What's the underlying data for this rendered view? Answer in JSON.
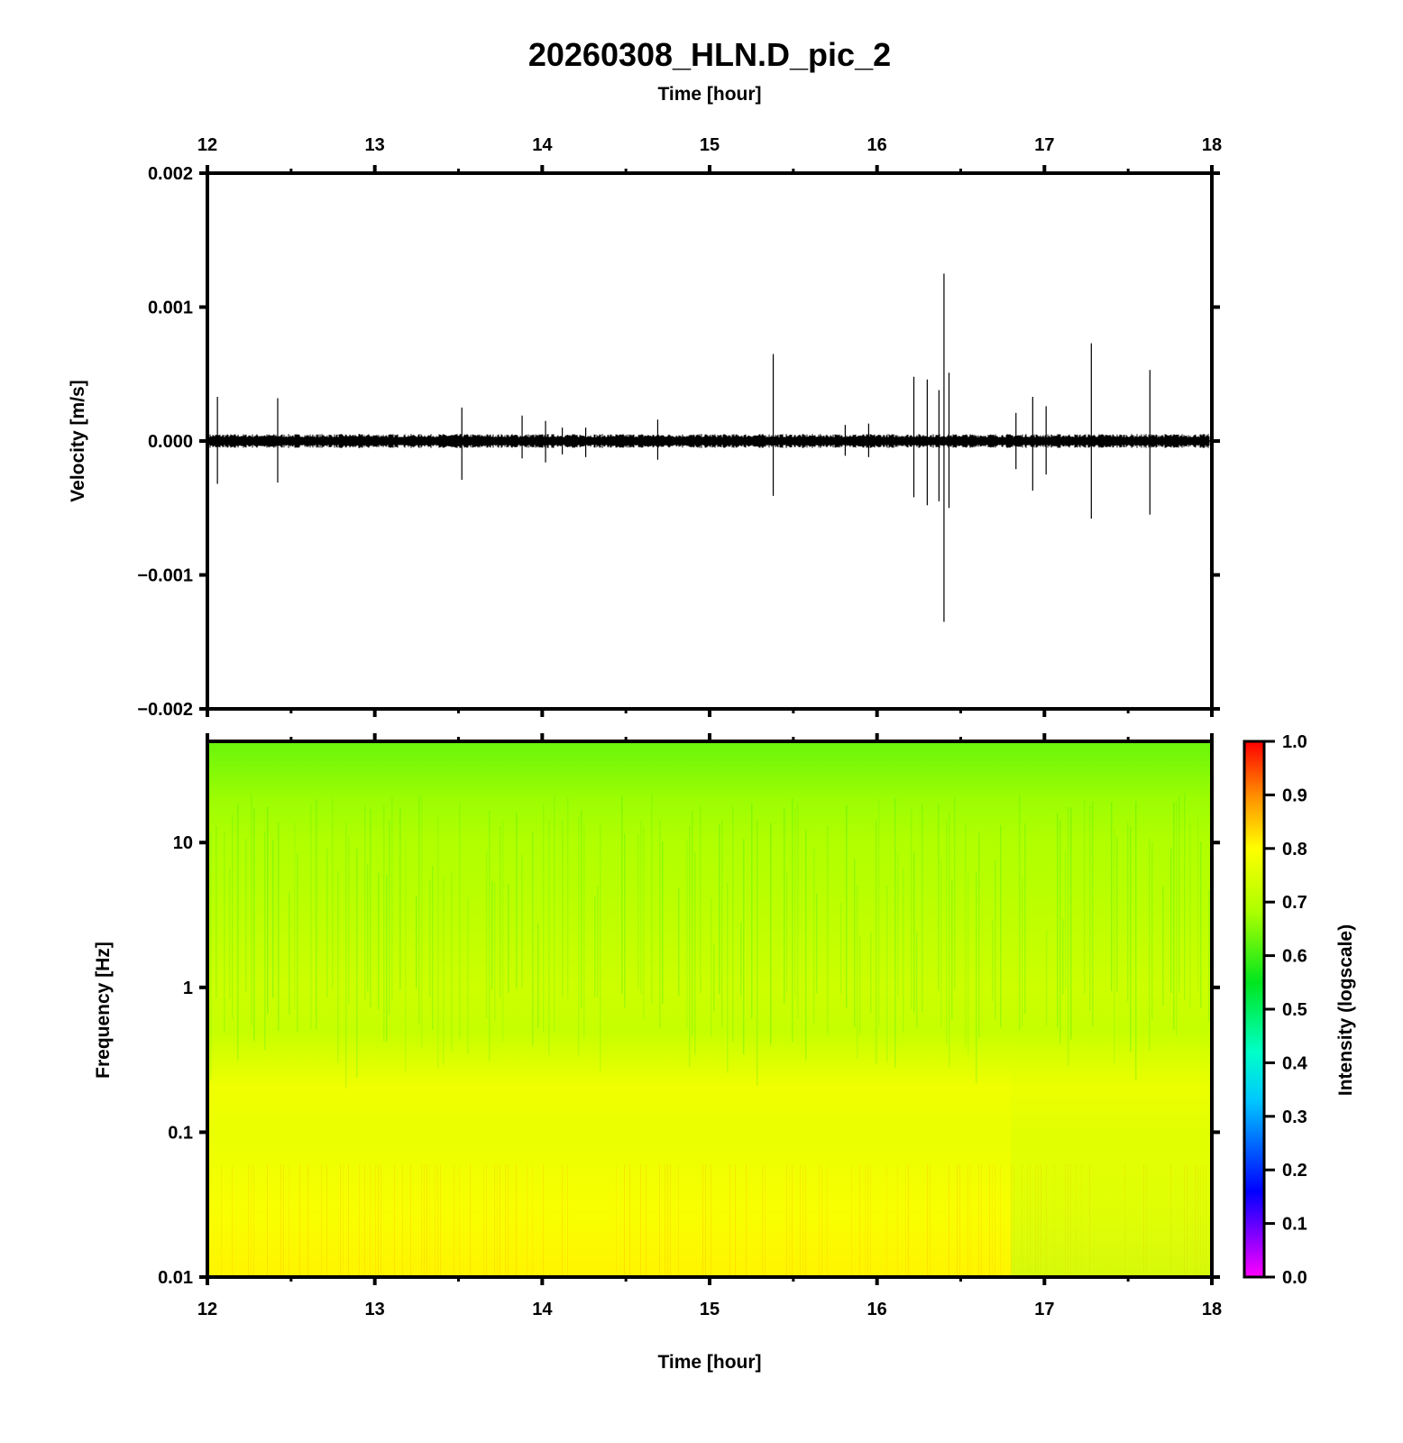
{
  "title": "20260308_HLN.D_pic_2",
  "chart_data": [
    {
      "type": "line",
      "name": "waveform",
      "xlabel": "Time [hour]",
      "ylabel": "Velocity [m/s]",
      "xlim": [
        12,
        18
      ],
      "ylim": [
        -0.002,
        0.002
      ],
      "x_ticks": [
        "12",
        "13",
        "14",
        "15",
        "16",
        "17",
        "18"
      ],
      "y_ticks": [
        {
          "value": 0.002,
          "label": "0.002"
        },
        {
          "value": 0.001,
          "label": "0.001"
        },
        {
          "value": 0.0,
          "label": "0.000"
        },
        {
          "value": -0.001,
          "label": "−0.001"
        },
        {
          "value": -0.002,
          "label": "−0.002"
        }
      ],
      "noise_amplitude": 4e-05,
      "spikes": [
        {
          "t": 12.06,
          "max": 0.00033,
          "min": -0.00032
        },
        {
          "t": 12.42,
          "max": 0.00032,
          "min": -0.00031
        },
        {
          "t": 13.52,
          "max": 0.00025,
          "min": -0.00029
        },
        {
          "t": 13.88,
          "max": 0.00019,
          "min": -0.00013
        },
        {
          "t": 14.02,
          "max": 0.00015,
          "min": -0.00016
        },
        {
          "t": 14.12,
          "max": 0.0001,
          "min": -0.0001
        },
        {
          "t": 14.26,
          "max": 0.0001,
          "min": -0.00012
        },
        {
          "t": 14.69,
          "max": 0.00016,
          "min": -0.00014
        },
        {
          "t": 15.38,
          "max": 0.00065,
          "min": -0.00041
        },
        {
          "t": 15.81,
          "max": 0.00012,
          "min": -0.00011
        },
        {
          "t": 15.95,
          "max": 0.00013,
          "min": -0.00012
        },
        {
          "t": 16.22,
          "max": 0.00048,
          "min": -0.00042
        },
        {
          "t": 16.3,
          "max": 0.00046,
          "min": -0.00048
        },
        {
          "t": 16.37,
          "max": 0.00038,
          "min": -0.00045
        },
        {
          "t": 16.4,
          "max": 0.00125,
          "min": -0.00135
        },
        {
          "t": 16.43,
          "max": 0.00051,
          "min": -0.0005
        },
        {
          "t": 16.83,
          "max": 0.00021,
          "min": -0.00021
        },
        {
          "t": 16.93,
          "max": 0.00033,
          "min": -0.00037
        },
        {
          "t": 17.01,
          "max": 0.00026,
          "min": -0.00025
        },
        {
          "t": 17.28,
          "max": 0.00073,
          "min": -0.00058
        },
        {
          "t": 17.63,
          "max": 0.00053,
          "min": -0.00055
        }
      ]
    },
    {
      "type": "heatmap",
      "name": "spectrogram",
      "xlabel": "Time [hour]",
      "ylabel": "Frequency [Hz]",
      "xlim": [
        12,
        18
      ],
      "ylim": [
        0.01,
        50
      ],
      "y_scale": "log",
      "x_ticks": [
        "12",
        "13",
        "14",
        "15",
        "16",
        "17",
        "18"
      ],
      "y_ticks": [
        {
          "value": 10,
          "label": "10"
        },
        {
          "value": 1,
          "label": "1"
        },
        {
          "value": 0.1,
          "label": "0.1"
        },
        {
          "value": 0.01,
          "label": "0.01"
        }
      ],
      "intensity_profile": [
        {
          "freq": 50,
          "intensity": 0.63
        },
        {
          "freq": 20,
          "intensity": 0.67
        },
        {
          "freq": 10,
          "intensity": 0.69
        },
        {
          "freq": 5,
          "intensity": 0.7
        },
        {
          "freq": 1,
          "intensity": 0.73
        },
        {
          "freq": 0.5,
          "intensity": 0.72
        },
        {
          "freq": 0.2,
          "intensity": 0.78
        },
        {
          "freq": 0.1,
          "intensity": 0.77
        },
        {
          "freq": 0.03,
          "intensity": 0.79
        },
        {
          "freq": 0.01,
          "intensity": 0.81
        }
      ],
      "low_freq_fade_after_hour": 16.8,
      "colorbar": {
        "label": "Intensity (logscale)",
        "range": [
          0.0,
          1.0
        ],
        "colormap": "rainbow",
        "ticks": [
          "0.0",
          "0.1",
          "0.2",
          "0.3",
          "0.4",
          "0.5",
          "0.6",
          "0.7",
          "0.8",
          "0.9",
          "1.0"
        ]
      }
    }
  ]
}
